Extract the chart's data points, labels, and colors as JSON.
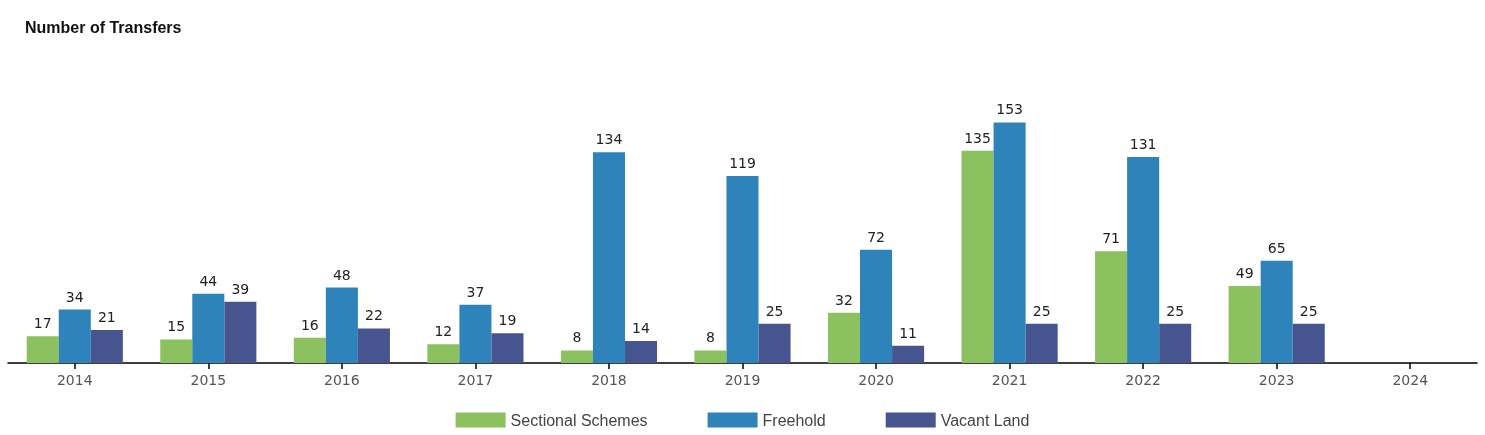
{
  "chart_data": {
    "type": "bar",
    "title": "Number of Transfers",
    "categories": [
      "2014",
      "2015",
      "2016",
      "2017",
      "2018",
      "2019",
      "2020",
      "2021",
      "2022",
      "2023",
      "2024"
    ],
    "series": [
      {
        "name": "Sectional Schemes",
        "color": "#8cc15f",
        "values": [
          17,
          15,
          16,
          12,
          8,
          8,
          32,
          135,
          71,
          49,
          null
        ]
      },
      {
        "name": "Freehold",
        "color": "#2e83ba",
        "values": [
          34,
          44,
          48,
          37,
          134,
          119,
          72,
          153,
          131,
          65,
          null
        ]
      },
      {
        "name": "Vacant Land",
        "color": "#46558f",
        "values": [
          21,
          39,
          22,
          19,
          14,
          25,
          11,
          25,
          25,
          25,
          null
        ]
      }
    ],
    "data_labels": true,
    "legend": "bottom",
    "grid": false
  }
}
